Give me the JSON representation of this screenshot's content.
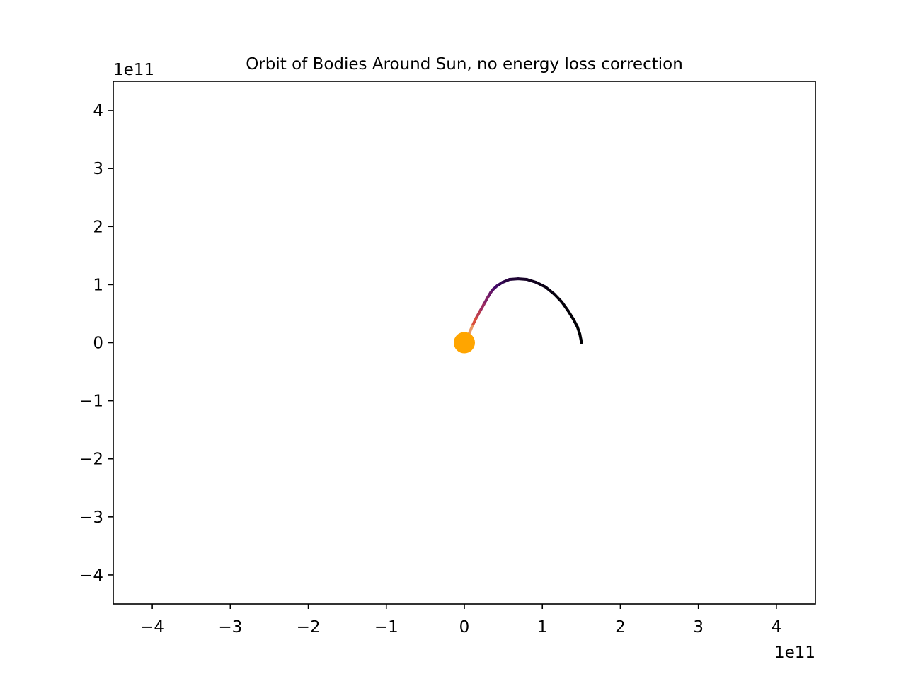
{
  "chart_data": {
    "type": "scatter",
    "title": "Orbit of Bodies Around Sun, no energy loss correction",
    "xlabel": "",
    "ylabel": "",
    "x_offset_label": "1e11",
    "y_offset_label": "1e11",
    "xlim": [
      -450000000000,
      450000000000
    ],
    "ylim": [
      -450000000000,
      450000000000
    ],
    "x_ticks": [
      -400000000000,
      -300000000000,
      -200000000000,
      -100000000000,
      0,
      100000000000,
      200000000000,
      300000000000,
      400000000000
    ],
    "x_tick_labels": [
      "−4",
      "−3",
      "−2",
      "−1",
      "0",
      "1",
      "2",
      "3",
      "4"
    ],
    "y_ticks": [
      400000000000,
      300000000000,
      200000000000,
      100000000000,
      0,
      -100000000000,
      -200000000000,
      -300000000000,
      -400000000000
    ],
    "y_tick_labels": [
      "4",
      "3",
      "2",
      "1",
      "0",
      "−1",
      "−2",
      "−3",
      "−4"
    ],
    "grid": false,
    "legend": "none",
    "sun": {
      "x": 0,
      "y": 0,
      "color": "#ffa500"
    },
    "colormap": "inferno",
    "orbit": {
      "x": [
        150000000000,
        149500000000,
        148000000000,
        145000000000,
        140000000000,
        133000000000,
        125000000000,
        115000000000,
        104000000000,
        92000000000,
        80000000000,
        69000000000,
        58000000000,
        49000000000,
        42000000000,
        37000000000,
        34000000000,
        30000000000,
        25000000000,
        20000000000,
        15000000000,
        10000000000,
        5000000000
      ],
      "y": [
        0,
        5000000000,
        15000000000,
        27000000000,
        40000000000,
        55000000000,
        70000000000,
        84000000000,
        96000000000,
        104000000000,
        109000000000,
        110000000000,
        109000000000,
        104000000000,
        98000000000,
        92000000000,
        87000000000,
        78000000000,
        66000000000,
        54000000000,
        42000000000,
        28000000000,
        12000000000
      ]
    }
  }
}
